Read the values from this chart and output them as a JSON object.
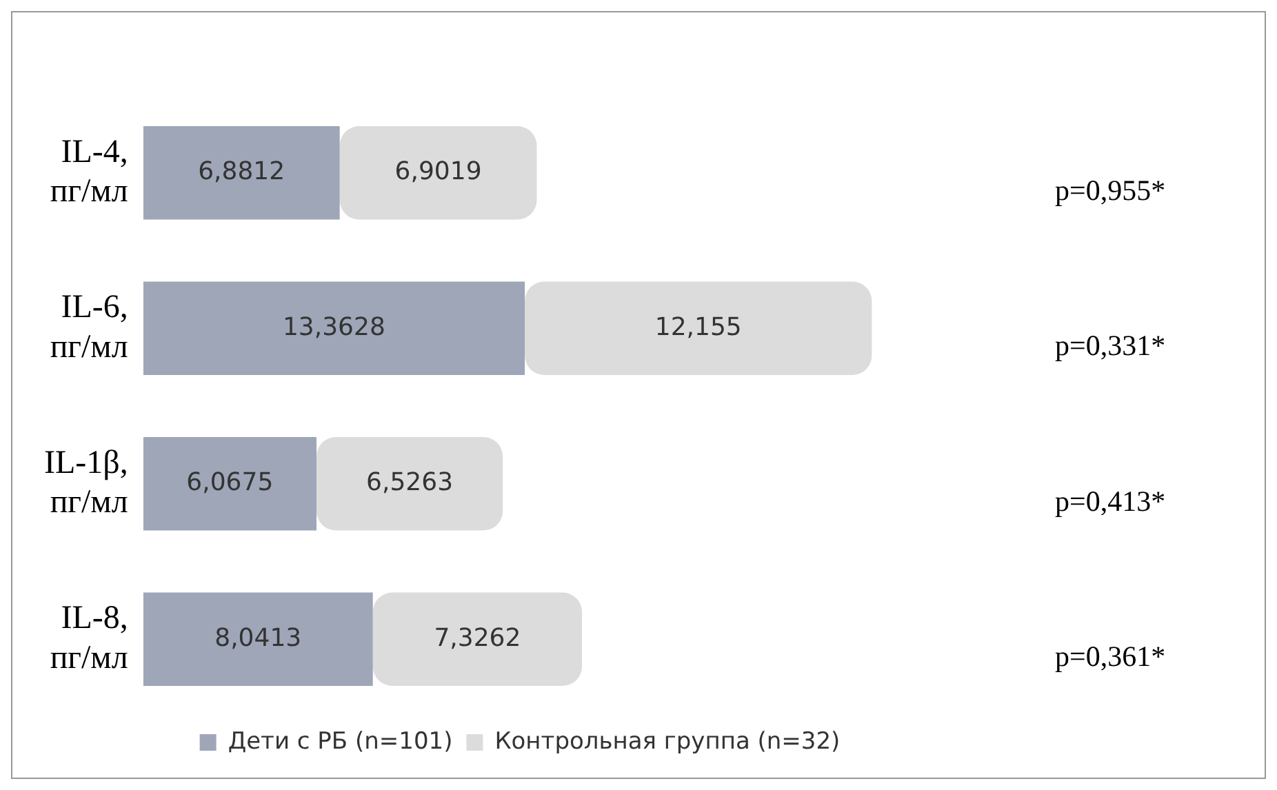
{
  "chart_data": {
    "type": "bar",
    "orientation": "horizontal",
    "stacked": true,
    "legend": "bottom",
    "tick_labels": "y",
    "categories": [
      "IL-4, пг/мл",
      "IL-6, пг/мл",
      "IL-1β, пг/мл",
      "IL-8, пг/мл"
    ],
    "series": [
      {
        "name": "Дети с РБ (n=101)",
        "color": "#9ea6b8",
        "values": [
          6.8812,
          13.3628,
          6.0675,
          8.0413
        ],
        "value_labels": [
          "6,8812",
          "13,3628",
          "6,0675",
          "8,0413"
        ]
      },
      {
        "name": "Контрольная группа (n=32)",
        "color": "#dcdcdc",
        "values": [
          6.9019,
          12.155,
          6.5263,
          7.3262
        ],
        "value_labels": [
          "6,9019",
          "12,155",
          "6,5263",
          "7,3262"
        ]
      }
    ],
    "annotations": [
      "p=0,955*",
      "p=0,331*",
      "p=0,413*",
      "p=0,361*"
    ]
  }
}
